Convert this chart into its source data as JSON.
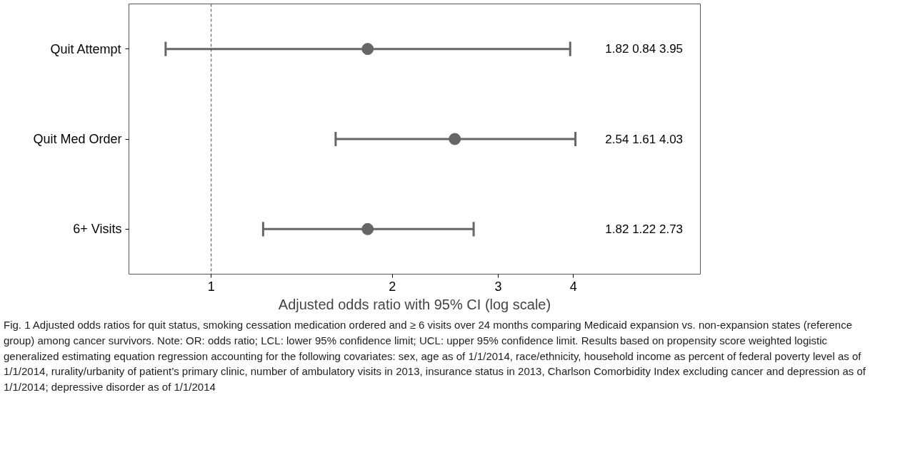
{
  "chart_data": {
    "type": "scatter",
    "orientation": "horizontal",
    "xlabel": "Adjusted odds ratio with 95% CI (log scale)",
    "categories": [
      "Quit Attempt",
      "Quit Med Order",
      "6+ Visits"
    ],
    "values": [
      1.82,
      2.54,
      1.82
    ],
    "errors": [
      [
        0.84,
        3.95
      ],
      [
        1.61,
        4.03
      ],
      [
        1.22,
        2.73
      ]
    ],
    "color": "#666666",
    "marker": "circle",
    "log": "x",
    "grid": false,
    "xlim": [
      0.73,
      6.5
    ],
    "xticks": [
      1,
      2,
      3,
      4
    ],
    "ref_lines": [
      {
        "axis": "x",
        "value": 1,
        "line_style": "dashed",
        "color": "#444444"
      }
    ],
    "annotations": [
      "1.82  0.84  3.95",
      "2.54  1.61  4.03",
      "1.82  1.22  2.73",
      "Fig. 1  Adjusted odds ratios for quit status, smoking cessation medication ordered and ≥ 6 visits over 24 months comparing Medicaid expansion vs. non-expansion states (reference group) among cancer survivors. Note: OR: odds ratio; LCL: lower 95% confidence limit; UCL: upper 95% confidence limit. Results based on propensity score weighted logistic generalized estimating equation regression accounting for the following covariates: sex, age as of 1/1/2014, race/ethnicity, household income as percent of federal poverty level as of 1/1/2014, rurality/urbanity of patient’s primary clinic, number of ambulatory visits in 2013, insurance status in 2013, Charlson Comorbidity Index excluding cancer and depression as of 1/1/2014; depressive disorder as of 1/1/2014"
    ]
  }
}
